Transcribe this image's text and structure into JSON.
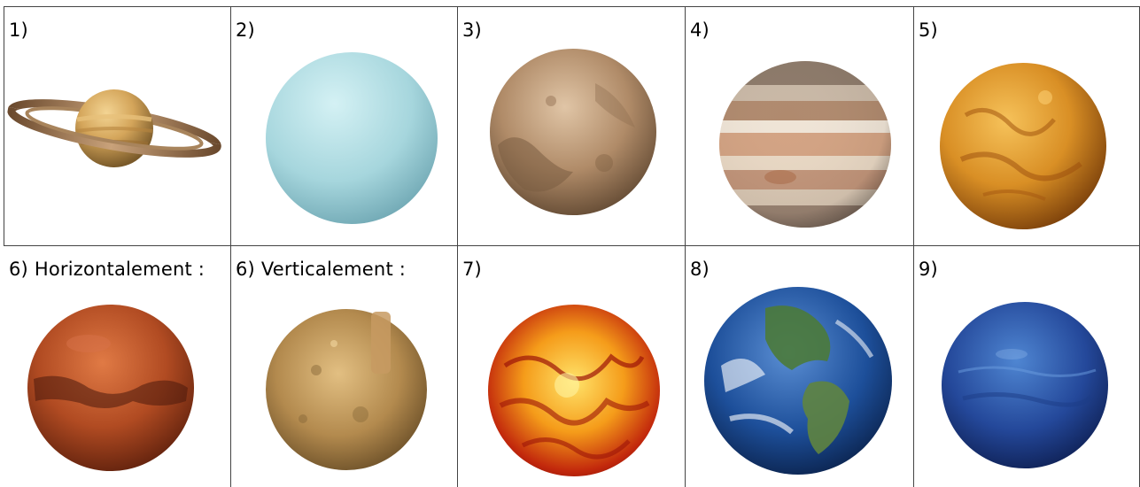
{
  "cells": [
    {
      "label": "1)",
      "planet": "saturn-icon"
    },
    {
      "label": "2)",
      "planet": "uranus-icon"
    },
    {
      "label": "3)",
      "planet": "pluto-icon"
    },
    {
      "label": "4)",
      "planet": "jupiter-icon"
    },
    {
      "label": "5)",
      "planet": "venus-icon"
    },
    {
      "label": "6) Horizontalement :",
      "planet": "mars-icon"
    },
    {
      "label": "6) Verticalement :",
      "planet": "mercury-icon"
    },
    {
      "label": "7)",
      "planet": "sun-icon"
    },
    {
      "label": "8)",
      "planet": "earth-icon"
    },
    {
      "label": "9)",
      "planet": "neptune-icon"
    }
  ]
}
